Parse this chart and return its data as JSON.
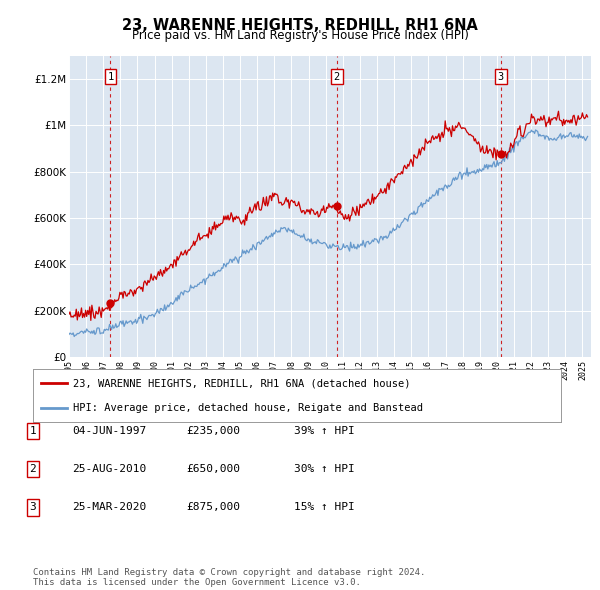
{
  "title": "23, WARENNE HEIGHTS, REDHILL, RH1 6NA",
  "subtitle": "Price paid vs. HM Land Registry's House Price Index (HPI)",
  "plot_bg_color": "#dce6f1",
  "ylim": [
    0,
    1300000
  ],
  "yticks": [
    0,
    200000,
    400000,
    600000,
    800000,
    1000000,
    1200000
  ],
  "ytick_labels": [
    "£0",
    "£200K",
    "£400K",
    "£600K",
    "£800K",
    "£1M",
    "£1.2M"
  ],
  "xmin": 1995,
  "xmax": 2025.5,
  "sales": [
    {
      "date": 1997.42,
      "price": 235000,
      "label": "1"
    },
    {
      "date": 2010.65,
      "price": 650000,
      "label": "2"
    },
    {
      "date": 2020.23,
      "price": 875000,
      "label": "3"
    }
  ],
  "legend_line1": "23, WARENNE HEIGHTS, REDHILL, RH1 6NA (detached house)",
  "legend_line2": "HPI: Average price, detached house, Reigate and Banstead",
  "table": [
    [
      "1",
      "04-JUN-1997",
      "£235,000",
      "39% ↑ HPI"
    ],
    [
      "2",
      "25-AUG-2010",
      "£650,000",
      "30% ↑ HPI"
    ],
    [
      "3",
      "25-MAR-2020",
      "£875,000",
      "15% ↑ HPI"
    ]
  ],
  "footer": "Contains HM Land Registry data © Crown copyright and database right 2024.\nThis data is licensed under the Open Government Licence v3.0.",
  "red_color": "#cc0000",
  "blue_color": "#6699cc",
  "vline_color": "#cc0000"
}
